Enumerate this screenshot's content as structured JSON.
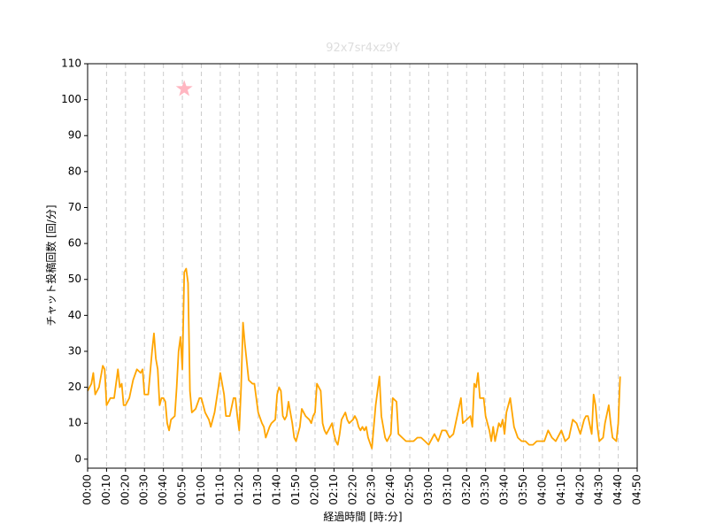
{
  "chart_data": {
    "type": "line",
    "title": "92x7sr4xz9Y",
    "title_color": "#dddddd",
    "x_label": "経過時間 [時:分]",
    "y_label": "チャット投稿回数 [回/分]",
    "x": [
      0,
      2,
      3,
      4,
      6,
      8,
      9,
      10,
      12,
      14,
      16,
      17,
      18,
      19,
      20,
      22,
      24,
      26,
      28,
      29,
      30,
      32,
      34,
      35,
      36,
      37,
      38,
      39,
      40,
      41,
      42,
      43,
      44,
      46,
      47,
      48,
      49,
      50,
      51,
      52,
      53,
      54,
      55,
      57,
      59,
      60,
      62,
      64,
      65,
      67,
      69,
      70,
      72,
      73,
      75,
      77,
      78,
      79,
      80,
      81,
      82,
      83,
      84,
      85,
      87,
      88,
      90,
      92,
      93,
      94,
      96,
      97,
      99,
      100,
      101,
      102,
      103,
      104,
      105,
      106,
      108,
      109,
      110,
      112,
      113,
      115,
      117,
      118,
      119,
      120,
      121,
      123,
      124,
      125,
      126,
      128,
      129,
      130,
      131,
      132,
      133,
      134,
      136,
      137,
      138,
      140,
      141,
      142,
      143,
      144,
      145,
      146,
      147,
      148,
      150,
      152,
      154,
      155,
      157,
      158,
      160,
      161,
      163,
      164,
      166,
      168,
      170,
      172,
      174,
      176,
      178,
      180,
      182,
      183,
      185,
      187,
      189,
      191,
      193,
      195,
      197,
      198,
      200,
      202,
      203,
      204,
      205,
      206,
      207,
      209,
      210,
      212,
      213,
      214,
      215,
      217,
      218,
      219,
      220,
      221,
      222,
      223,
      225,
      227,
      229,
      231,
      233,
      235,
      237,
      239,
      241,
      243,
      245,
      247,
      249,
      250,
      252,
      254,
      256,
      258,
      260,
      262,
      263,
      264,
      266,
      267,
      268,
      269,
      270,
      272,
      273,
      275,
      276,
      277,
      279,
      280,
      281
    ],
    "series": [
      {
        "color": "#ffa500",
        "values": [
          19,
          21,
          24,
          18,
          20,
          26,
          25,
          15,
          17,
          17,
          25,
          20,
          21,
          15,
          15,
          17,
          22,
          25,
          24,
          25,
          18,
          18,
          30,
          35,
          28,
          25,
          15,
          17,
          17,
          16,
          10,
          8,
          11,
          12,
          20,
          30,
          34,
          25,
          52,
          53,
          49,
          19,
          13,
          14,
          17,
          17,
          13,
          11,
          9,
          13,
          20,
          24,
          18,
          12,
          12,
          17,
          17,
          12,
          8,
          20,
          38,
          32,
          27,
          22,
          21,
          21,
          13,
          10,
          9,
          6,
          9,
          10,
          11,
          18,
          20,
          19,
          12,
          11,
          12,
          16,
          10,
          6,
          5,
          9,
          14,
          12,
          11,
          10,
          12,
          13,
          21,
          19,
          10,
          8,
          7,
          9,
          10,
          7,
          5,
          4,
          7,
          11,
          13,
          11,
          10,
          11,
          12,
          11,
          9,
          8,
          9,
          8,
          9,
          6,
          3,
          15,
          23,
          12,
          6,
          5,
          7,
          17,
          16,
          7,
          6,
          5,
          5,
          5,
          6,
          6,
          5,
          4,
          6,
          7,
          5,
          8,
          8,
          6,
          7,
          12,
          17,
          10,
          11,
          12,
          9,
          21,
          20,
          24,
          17,
          17,
          12,
          8,
          5,
          9,
          5,
          10,
          9,
          11,
          7,
          13,
          15,
          17,
          9,
          6,
          5,
          5,
          4,
          4,
          5,
          5,
          5,
          8,
          6,
          5,
          7,
          8,
          5,
          6,
          11,
          10,
          7,
          11,
          12,
          12,
          7,
          18,
          15,
          9,
          5,
          6,
          10,
          15,
          10,
          6,
          5,
          10,
          23
        ]
      }
    ],
    "highlight": {
      "x": 51,
      "y": 103,
      "color": "#ffb6c1"
    },
    "xlim": [
      0,
      290
    ],
    "ylim": [
      -2.5,
      110
    ],
    "xticks": [
      {
        "value": 0,
        "label": "00:00"
      },
      {
        "value": 10,
        "label": "00:10"
      },
      {
        "value": 20,
        "label": "00:20"
      },
      {
        "value": 30,
        "label": "00:30"
      },
      {
        "value": 40,
        "label": "00:40"
      },
      {
        "value": 50,
        "label": "00:50"
      },
      {
        "value": 60,
        "label": "01:00"
      },
      {
        "value": 70,
        "label": "01:10"
      },
      {
        "value": 80,
        "label": "01:20"
      },
      {
        "value": 90,
        "label": "01:30"
      },
      {
        "value": 100,
        "label": "01:40"
      },
      {
        "value": 110,
        "label": "01:50"
      },
      {
        "value": 120,
        "label": "02:00"
      },
      {
        "value": 130,
        "label": "02:10"
      },
      {
        "value": 140,
        "label": "02:20"
      },
      {
        "value": 150,
        "label": "02:30"
      },
      {
        "value": 160,
        "label": "02:40"
      },
      {
        "value": 170,
        "label": "02:50"
      },
      {
        "value": 180,
        "label": "03:00"
      },
      {
        "value": 190,
        "label": "03:10"
      },
      {
        "value": 200,
        "label": "03:20"
      },
      {
        "value": 210,
        "label": "03:30"
      },
      {
        "value": 220,
        "label": "03:40"
      },
      {
        "value": 230,
        "label": "03:50"
      },
      {
        "value": 240,
        "label": "04:00"
      },
      {
        "value": 250,
        "label": "04:10"
      },
      {
        "value": 260,
        "label": "04:20"
      },
      {
        "value": 270,
        "label": "04:30"
      },
      {
        "value": 280,
        "label": "04:40"
      },
      {
        "value": 290,
        "label": "04:50"
      }
    ],
    "yticks": [
      0,
      10,
      20,
      30,
      40,
      50,
      60,
      70,
      80,
      90,
      100,
      110
    ],
    "x_grid": true
  }
}
